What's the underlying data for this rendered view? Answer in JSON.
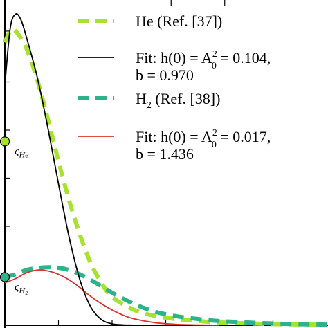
{
  "chart_data": {
    "type": "line",
    "title": "",
    "xlabel": "",
    "ylabel": "",
    "xlim": [
      0,
      3
    ],
    "ylim": [
      0,
      0.115
    ],
    "grid": false,
    "legend_position": "top-right",
    "series": [
      {
        "name": "He (Ref. [37])",
        "style": "dashed",
        "color": "#a6e22e",
        "x": [
          0,
          0.05,
          0.1,
          0.2,
          0.3,
          0.4,
          0.5,
          0.6,
          0.7,
          0.8,
          0.9,
          1.0,
          1.2,
          1.4,
          1.6,
          1.8,
          2.0,
          2.5,
          3.0
        ],
        "y": [
          0.1,
          0.104,
          0.104,
          0.098,
          0.087,
          0.073,
          0.058,
          0.044,
          0.032,
          0.022,
          0.015,
          0.01,
          0.0055,
          0.0033,
          0.0022,
          0.0015,
          0.001,
          0.0004,
          0.0002
        ]
      },
      {
        "name": "Fit: h(0) = A0^2 = 0.104, b = 0.970",
        "style": "solid",
        "color": "#000000",
        "x": [
          0,
          0.05,
          0.1,
          0.15,
          0.2,
          0.3,
          0.4,
          0.5,
          0.6,
          0.7,
          0.8,
          0.9,
          1.0,
          1.1,
          1.2,
          1.3,
          1.4,
          1.5
        ],
        "y": [
          0.085,
          0.105,
          0.11,
          0.108,
          0.102,
          0.088,
          0.07,
          0.05,
          0.031,
          0.016,
          0.0065,
          0.002,
          0.0005,
          0.00012,
          3e-05,
          0.0,
          0.0,
          0.0
        ]
      },
      {
        "name": "H2 (Ref. [38])",
        "style": "dashed",
        "color": "#2db38a",
        "x": [
          0,
          0.1,
          0.2,
          0.3,
          0.4,
          0.5,
          0.6,
          0.7,
          0.8,
          0.9,
          1.0,
          1.2,
          1.4,
          1.6,
          1.8,
          2.0,
          2.5,
          3.0
        ],
        "y": [
          0.017,
          0.018,
          0.0195,
          0.0202,
          0.0205,
          0.0203,
          0.0195,
          0.018,
          0.016,
          0.0138,
          0.0115,
          0.0076,
          0.0048,
          0.0032,
          0.0022,
          0.0015,
          0.0006,
          0.0002
        ]
      },
      {
        "name": "Fit: h(0) = A0^2 = 0.017, b = 1.436",
        "style": "solid",
        "color": "#e0302a",
        "x": [
          0,
          0.1,
          0.2,
          0.3,
          0.4,
          0.5,
          0.6,
          0.7,
          0.8,
          0.9,
          1.0,
          1.1,
          1.2,
          1.4,
          1.6,
          1.8,
          2.0
        ],
        "y": [
          0.015,
          0.0165,
          0.0185,
          0.0195,
          0.0192,
          0.018,
          0.016,
          0.0133,
          0.0102,
          0.0076,
          0.0054,
          0.0036,
          0.0023,
          0.0009,
          0.0003,
          0.0001,
          0.0
        ]
      }
    ],
    "markers": [
      {
        "label_base": "ς",
        "label_sub": "He",
        "y": 0.065,
        "color": "#a6e22e"
      },
      {
        "label_base": "ς",
        "label_sub": "H₂",
        "y": 0.017,
        "color": "#2db38a"
      }
    ],
    "legend": [
      {
        "line1": "He (Ref. [37])"
      },
      {
        "line1": "Fit: h(0) = A",
        "sup": "2",
        "sub": "0",
        "tail": " = 0.104,",
        "line2": "b = 0.970"
      },
      {
        "line1": "H",
        "sub": "2",
        "tail": " (Ref. [38])"
      },
      {
        "line1": "Fit: h(0) = A",
        "sup": "2",
        "sub": "0",
        "tail": " = 0.017,",
        "line2": "b = 1.436"
      }
    ]
  }
}
